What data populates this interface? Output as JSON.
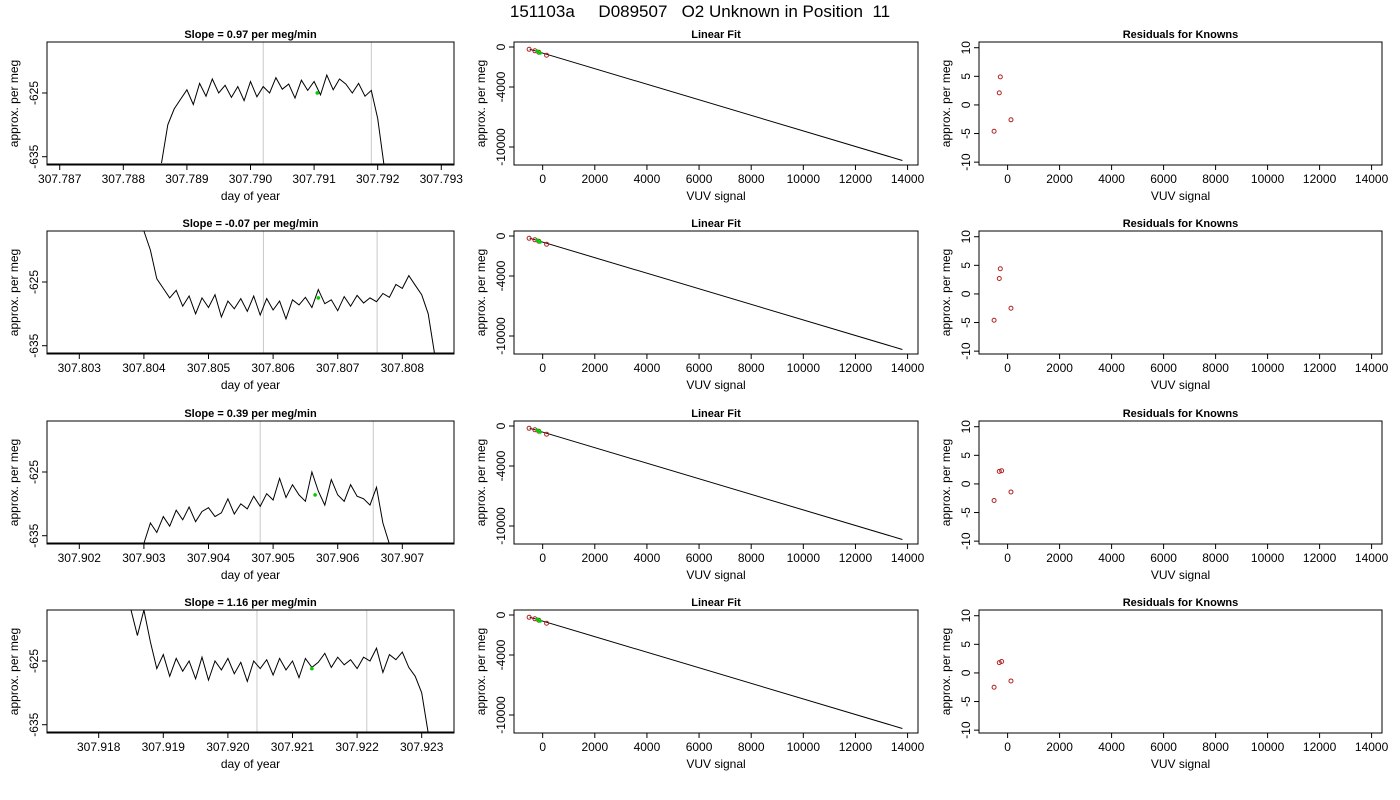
{
  "page_title": "151103a     D089507   O2 Unknown in Position  11",
  "chart_data": [
    {
      "type": "line",
      "title": "Slope =  0.97  per meg/min",
      "xlabel": "day of year",
      "ylabel": "approx. per meg",
      "xlim": [
        307.7868,
        307.7932
      ],
      "ylim": [
        -636.3,
        -617.0
      ],
      "xticks": [
        "307.787",
        "307.788",
        "307.789",
        "307.790",
        "307.791",
        "307.792",
        "307.793"
      ],
      "yticks": [
        "-625",
        "-635"
      ],
      "vlines": [
        307.7902,
        307.7919
      ],
      "series": [
        {
          "x": [
            307.7886,
            307.7887,
            307.7888,
            307.7889,
            307.789,
            307.7891,
            307.7892,
            307.7893,
            307.7894,
            307.7895,
            307.7896,
            307.7897,
            307.7898,
            307.7899,
            307.79,
            307.7901,
            307.7902,
            307.7903,
            307.7904,
            307.7905,
            307.7906,
            307.7907,
            307.7908,
            307.7909,
            307.791,
            307.7911,
            307.7912,
            307.7913,
            307.7914,
            307.7915,
            307.7916,
            307.7917,
            307.7918,
            307.7919,
            307.792,
            307.7921
          ],
          "y": [
            -636.0,
            -630.0,
            -627.5,
            -626.0,
            -624.5,
            -626.8,
            -623.5,
            -625.5,
            -622.8,
            -625.0,
            -623.8,
            -625.7,
            -624.0,
            -626.2,
            -623.2,
            -625.6,
            -624.0,
            -625.0,
            -622.6,
            -624.4,
            -623.6,
            -625.8,
            -623.0,
            -624.6,
            -623.2,
            -625.3,
            -622.2,
            -624.5,
            -622.8,
            -623.6,
            -625.0,
            -623.5,
            -625.5,
            -624.6,
            -629.0,
            -636.5
          ]
        }
      ],
      "highlight": {
        "x": 307.79105,
        "y": -625.0
      }
    },
    {
      "type": "line",
      "title": "Slope =  -0.07  per meg/min",
      "xlabel": "day of year",
      "ylabel": "approx. per meg",
      "xlim": [
        307.8025,
        307.8088
      ],
      "ylim": [
        -636.3,
        -617.0
      ],
      "xticks": [
        "307.803",
        "307.804",
        "307.805",
        "307.806",
        "307.807",
        "307.808"
      ],
      "yticks": [
        "-625",
        "-635"
      ],
      "vlines": [
        307.80585,
        307.80761
      ],
      "series": [
        {
          "x": [
            307.804,
            307.8041,
            307.8042,
            307.8043,
            307.8044,
            307.8045,
            307.8046,
            307.8047,
            307.8048,
            307.8049,
            307.805,
            307.8051,
            307.8052,
            307.8053,
            307.8054,
            307.8055,
            307.8056,
            307.8057,
            307.8058,
            307.8059,
            307.806,
            307.8061,
            307.8062,
            307.8063,
            307.8064,
            307.8065,
            307.8066,
            307.8067,
            307.8068,
            307.8069,
            307.807,
            307.8071,
            307.8072,
            307.8073,
            307.8074,
            307.8075,
            307.8076,
            307.8077,
            307.8078,
            307.8079,
            307.808,
            307.8081,
            307.8082,
            307.8083,
            307.8084,
            307.8085
          ],
          "y": [
            -617.0,
            -620.0,
            -624.5,
            -626.0,
            -627.5,
            -626.3,
            -628.8,
            -627.2,
            -630.0,
            -627.5,
            -629.0,
            -627.0,
            -630.5,
            -628.0,
            -629.2,
            -627.6,
            -629.6,
            -627.2,
            -630.2,
            -627.6,
            -629.4,
            -628.0,
            -630.8,
            -627.8,
            -628.6,
            -627.4,
            -629.0,
            -626.2,
            -628.4,
            -627.8,
            -629.5,
            -627.3,
            -628.8,
            -627.1,
            -628.3,
            -627.5,
            -628.1,
            -626.8,
            -627.4,
            -625.4,
            -626.0,
            -624.0,
            -625.5,
            -627.0,
            -630.0,
            -636.5
          ]
        }
      ],
      "highlight": {
        "x": 307.8067,
        "y": -627.5
      }
    },
    {
      "type": "line",
      "title": "Slope =  0.39  per meg/min",
      "xlabel": "day of year",
      "ylabel": "approx. per meg",
      "xlim": [
        307.9015,
        307.9078
      ],
      "ylim": [
        -636.3,
        -617.0
      ],
      "xticks": [
        "307.902",
        "307.903",
        "307.904",
        "307.905",
        "307.906",
        "307.907"
      ],
      "yticks": [
        "-625",
        "-635"
      ],
      "vlines": [
        307.9048,
        307.90655
      ],
      "series": [
        {
          "x": [
            307.903,
            307.9031,
            307.9032,
            307.9033,
            307.9034,
            307.9035,
            307.9036,
            307.9037,
            307.9038,
            307.9039,
            307.904,
            307.9041,
            307.9042,
            307.9043,
            307.9044,
            307.9045,
            307.9046,
            307.9047,
            307.9048,
            307.9049,
            307.905,
            307.9051,
            307.9052,
            307.9053,
            307.9054,
            307.9055,
            307.9056,
            307.9057,
            307.9058,
            307.9059,
            307.906,
            307.9061,
            307.9062,
            307.9063,
            307.9064,
            307.9065,
            307.9066,
            307.9067,
            307.9068
          ],
          "y": [
            -636.2,
            -633.0,
            -634.5,
            -632.0,
            -633.5,
            -631.0,
            -632.5,
            -630.5,
            -632.8,
            -631.2,
            -630.6,
            -632.0,
            -631.4,
            -629.2,
            -631.6,
            -630.0,
            -630.8,
            -628.8,
            -630.4,
            -628.4,
            -629.4,
            -626.0,
            -629.0,
            -627.0,
            -628.6,
            -629.6,
            -625.0,
            -628.0,
            -630.2,
            -626.2,
            -628.6,
            -629.6,
            -627.0,
            -628.8,
            -629.2,
            -630.2,
            -627.4,
            -633.0,
            -636.5
          ]
        }
      ],
      "highlight": {
        "x": 307.90565,
        "y": -628.6
      }
    },
    {
      "type": "line",
      "title": "Slope =  1.16  per meg/min",
      "xlabel": "day of year",
      "ylabel": "approx. per meg",
      "xlim": [
        307.9172,
        307.9235
      ],
      "ylim": [
        -636.3,
        -617.0
      ],
      "xticks": [
        "307.918",
        "307.919",
        "307.920",
        "307.921",
        "307.922",
        "307.923"
      ],
      "yticks": [
        "-625",
        "-635"
      ],
      "vlines": [
        307.92045,
        307.92215
      ],
      "series": [
        {
          "x": [
            307.9185,
            307.9186,
            307.9187,
            307.9188,
            307.9189,
            307.919,
            307.9191,
            307.9192,
            307.9193,
            307.9194,
            307.9195,
            307.9196,
            307.9197,
            307.9198,
            307.9199,
            307.92,
            307.9201,
            307.9202,
            307.9203,
            307.9204,
            307.9205,
            307.9206,
            307.9207,
            307.9208,
            307.9209,
            307.921,
            307.9211,
            307.9212,
            307.9213,
            307.9214,
            307.9215,
            307.9216,
            307.9217,
            307.9218,
            307.9219,
            307.922,
            307.9221,
            307.9222,
            307.9223,
            307.9224,
            307.9225,
            307.9226,
            307.9227,
            307.9228,
            307.9229,
            307.923,
            307.9231
          ],
          "y": [
            -617.0,
            -621.0,
            -616.8,
            -622.0,
            -626.2,
            -624.0,
            -627.4,
            -624.6,
            -626.6,
            -625.0,
            -627.8,
            -624.4,
            -628.0,
            -625.0,
            -626.4,
            -624.6,
            -627.0,
            -625.2,
            -628.2,
            -625.0,
            -626.2,
            -624.8,
            -627.2,
            -624.6,
            -626.4,
            -625.0,
            -627.6,
            -624.6,
            -626.0,
            -625.2,
            -623.8,
            -626.0,
            -624.4,
            -625.6,
            -624.8,
            -626.2,
            -624.4,
            -625.0,
            -623.0,
            -626.8,
            -624.0,
            -624.8,
            -623.6,
            -626.0,
            -627.4,
            -630.0,
            -636.5
          ]
        }
      ],
      "highlight": {
        "x": 307.9213,
        "y": -626.2
      }
    },
    {
      "type": "scatter",
      "title": "Linear Fit",
      "xlabel": "VUV signal",
      "ylabel": "approx. per meg",
      "xlim": [
        -1100,
        14400
      ],
      "ylim": [
        -11800,
        500
      ],
      "xticks": [
        0,
        2000,
        4000,
        6000,
        8000,
        10000,
        12000,
        14000
      ],
      "yticks": [
        0,
        -4000,
        -10000
      ],
      "fit_line": {
        "x": [
          -500,
          13800
        ],
        "y": [
          -220,
          -11350
        ]
      },
      "known_points": {
        "x": [
          -520,
          -300,
          -150,
          150
        ],
        "y": [
          -230,
          -380,
          -520,
          -820
        ]
      },
      "highlight": {
        "x": [
          -200,
          -100
        ],
        "y": [
          -430,
          -600
        ]
      }
    },
    {
      "type": "scatter",
      "title": "Linear Fit",
      "xlabel": "VUV signal",
      "ylabel": "approx. per meg",
      "xlim": [
        -1100,
        14400
      ],
      "ylim": [
        -11800,
        500
      ],
      "xticks": [
        0,
        2000,
        4000,
        6000,
        8000,
        10000,
        12000,
        14000
      ],
      "yticks": [
        0,
        -4000,
        -10000
      ],
      "fit_line": {
        "x": [
          -500,
          13800
        ],
        "y": [
          -220,
          -11350
        ]
      },
      "known_points": {
        "x": [
          -520,
          -300,
          -150,
          150
        ],
        "y": [
          -230,
          -380,
          -520,
          -820
        ]
      },
      "highlight": {
        "x": [
          -200,
          -100
        ],
        "y": [
          -430,
          -600
        ]
      }
    },
    {
      "type": "scatter",
      "title": "Linear Fit",
      "xlabel": "VUV signal",
      "ylabel": "approx. per meg",
      "xlim": [
        -1100,
        14400
      ],
      "ylim": [
        -11800,
        500
      ],
      "xticks": [
        0,
        2000,
        4000,
        6000,
        8000,
        10000,
        12000,
        14000
      ],
      "yticks": [
        0,
        -4000,
        -10000
      ],
      "fit_line": {
        "x": [
          -500,
          13800
        ],
        "y": [
          -220,
          -11350
        ]
      },
      "known_points": {
        "x": [
          -520,
          -300,
          -150,
          150
        ],
        "y": [
          -230,
          -380,
          -520,
          -820
        ]
      },
      "highlight": {
        "x": [
          -200,
          -100
        ],
        "y": [
          -430,
          -600
        ]
      }
    },
    {
      "type": "scatter",
      "title": "Linear Fit",
      "xlabel": "VUV signal",
      "ylabel": "approx. per meg",
      "xlim": [
        -1100,
        14400
      ],
      "ylim": [
        -11800,
        500
      ],
      "xticks": [
        0,
        2000,
        4000,
        6000,
        8000,
        10000,
        12000,
        14000
      ],
      "yticks": [
        0,
        -4000,
        -10000
      ],
      "fit_line": {
        "x": [
          -500,
          13800
        ],
        "y": [
          -220,
          -11350
        ]
      },
      "known_points": {
        "x": [
          -520,
          -300,
          -150,
          150
        ],
        "y": [
          -230,
          -380,
          -520,
          -820
        ]
      },
      "highlight": {
        "x": [
          -200,
          -100
        ],
        "y": [
          -430,
          -600
        ]
      }
    },
    {
      "type": "scatter",
      "title": "Residuals for Knowns",
      "xlabel": "VUV signal",
      "ylabel": "approx. per meg",
      "xlim": [
        -1100,
        14400
      ],
      "ylim": [
        -10.5,
        11
      ],
      "xticks": [
        0,
        2000,
        4000,
        6000,
        8000,
        10000,
        12000,
        14000
      ],
      "yticks": [
        10,
        5,
        0,
        -5,
        -10
      ],
      "points": {
        "x": [
          -520,
          -320,
          -280,
          130
        ],
        "y": [
          -4.6,
          2.1,
          4.9,
          -2.6
        ]
      }
    },
    {
      "type": "scatter",
      "title": "Residuals for Knowns",
      "xlabel": "VUV signal",
      "ylabel": "approx. per meg",
      "xlim": [
        -1100,
        14400
      ],
      "ylim": [
        -10.5,
        11
      ],
      "xticks": [
        0,
        2000,
        4000,
        6000,
        8000,
        10000,
        12000,
        14000
      ],
      "yticks": [
        10,
        5,
        0,
        -5,
        -10
      ],
      "points": {
        "x": [
          -520,
          -320,
          -280,
          130
        ],
        "y": [
          -4.6,
          2.7,
          4.4,
          -2.5
        ]
      }
    },
    {
      "type": "scatter",
      "title": "Residuals for Knowns",
      "xlabel": "VUV signal",
      "ylabel": "approx. per meg",
      "xlim": [
        -1100,
        14400
      ],
      "ylim": [
        -10.5,
        11
      ],
      "xticks": [
        0,
        2000,
        4000,
        6000,
        8000,
        10000,
        12000,
        14000
      ],
      "yticks": [
        10,
        5,
        0,
        -5,
        -10
      ],
      "points": {
        "x": [
          -520,
          -320,
          -230,
          130
        ],
        "y": [
          -2.9,
          2.2,
          2.3,
          -1.4
        ]
      }
    },
    {
      "type": "scatter",
      "title": "Residuals for Knowns",
      "xlabel": "VUV signal",
      "ylabel": "approx. per meg",
      "xlim": [
        -1100,
        14400
      ],
      "ylim": [
        -10.5,
        11
      ],
      "xticks": [
        0,
        2000,
        4000,
        6000,
        8000,
        10000,
        12000,
        14000
      ],
      "yticks": [
        10,
        5,
        0,
        -5,
        -10
      ],
      "points": {
        "x": [
          -520,
          -320,
          -230,
          130
        ],
        "y": [
          -2.5,
          1.8,
          2.0,
          -1.4
        ]
      }
    }
  ]
}
